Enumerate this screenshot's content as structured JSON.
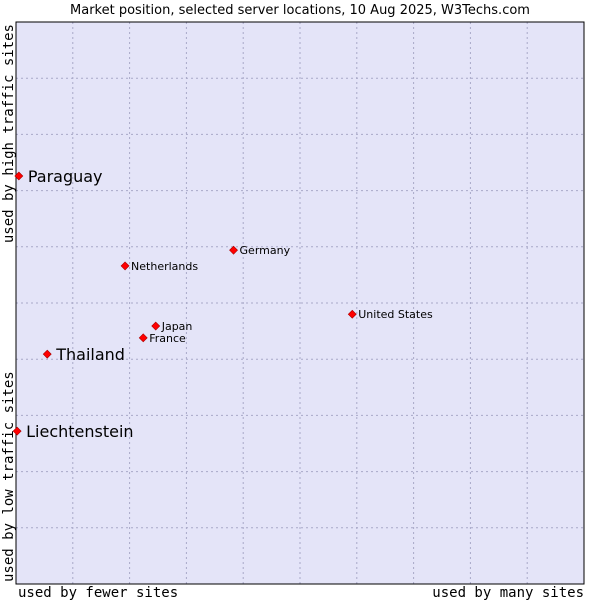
{
  "chart_data": {
    "type": "scatter",
    "title": "Market position, selected server locations, 10 Aug 2025, W3Techs.com",
    "xlabel_left": "used by fewer sites",
    "xlabel_right": "used by many sites",
    "ylabel_bottom": "used by low traffic sites",
    "ylabel_top": "used by high traffic sites",
    "xlim": [
      0,
      10
    ],
    "ylim": [
      0,
      10
    ],
    "grid": true,
    "colors": {
      "plot_bg": "#e4e4f8",
      "grid": "#a8a8c8",
      "border": "#000000",
      "marker": "#ff0000"
    },
    "points": [
      {
        "name": "Paraguay",
        "x": 0.05,
        "y": 7.26,
        "emphasis": true
      },
      {
        "name": "Thailand",
        "x": 0.55,
        "y": 4.09,
        "emphasis": true
      },
      {
        "name": "Liechtenstein",
        "x": 0.02,
        "y": 2.72,
        "emphasis": true
      },
      {
        "name": "Germany",
        "x": 3.83,
        "y": 5.94,
        "emphasis": false
      },
      {
        "name": "Netherlands",
        "x": 1.92,
        "y": 5.66,
        "emphasis": false
      },
      {
        "name": "United States",
        "x": 5.92,
        "y": 4.8,
        "emphasis": false
      },
      {
        "name": "Japan",
        "x": 2.46,
        "y": 4.59,
        "emphasis": false
      },
      {
        "name": "France",
        "x": 2.24,
        "y": 4.38,
        "emphasis": false
      }
    ]
  }
}
